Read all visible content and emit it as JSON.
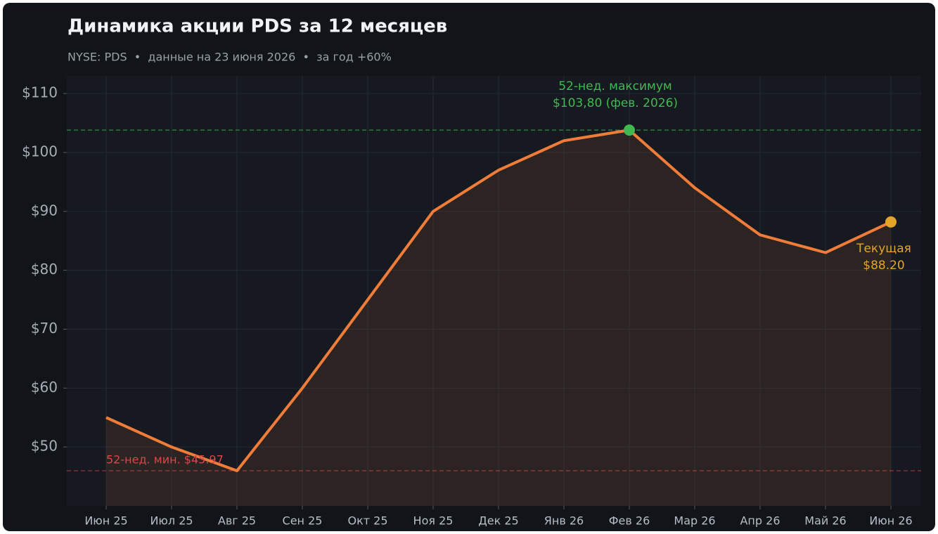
{
  "chart_data": {
    "type": "line",
    "title": "Динамика акции PDS за 12 месяцев",
    "subtitle": "NYSE: PDS  •  данные на 23 июня 2026  •  за год +60%",
    "categories": [
      "Июн 25",
      "Июл 25",
      "Авг 25",
      "Сен 25",
      "Окт 25",
      "Ноя 25",
      "Дек 25",
      "Янв 26",
      "Фев 26",
      "Мар 26",
      "Апр 26",
      "Май 26",
      "Июн 26"
    ],
    "values": [
      55,
      50,
      45.97,
      60,
      75,
      90,
      97,
      102,
      103.8,
      94,
      86,
      83,
      88.2
    ],
    "color": "#f07c3a",
    "ylim": [
      40,
      113
    ],
    "yticks": [
      {
        "value": 50,
        "label": "$50"
      },
      {
        "value": 60,
        "label": "$60"
      },
      {
        "value": 70,
        "label": "$70"
      },
      {
        "value": 80,
        "label": "$80"
      },
      {
        "value": 90,
        "label": "$90"
      },
      {
        "value": 100,
        "label": "$100"
      },
      {
        "value": 110,
        "label": "$110"
      }
    ],
    "grid": true,
    "reference_lines": [
      {
        "value": 103.8,
        "label": [
          "52-нед. максимум",
          "$103,80 (фев. 2026)"
        ],
        "color": "#3fb950",
        "point": 8
      },
      {
        "value": 45.97,
        "label": [
          "52-нед. мин. $45.97"
        ],
        "color": "#d9484a"
      }
    ],
    "current": {
      "label": [
        "Текущая",
        "$88.20"
      ],
      "color": "#e3a428",
      "point": 12
    }
  }
}
